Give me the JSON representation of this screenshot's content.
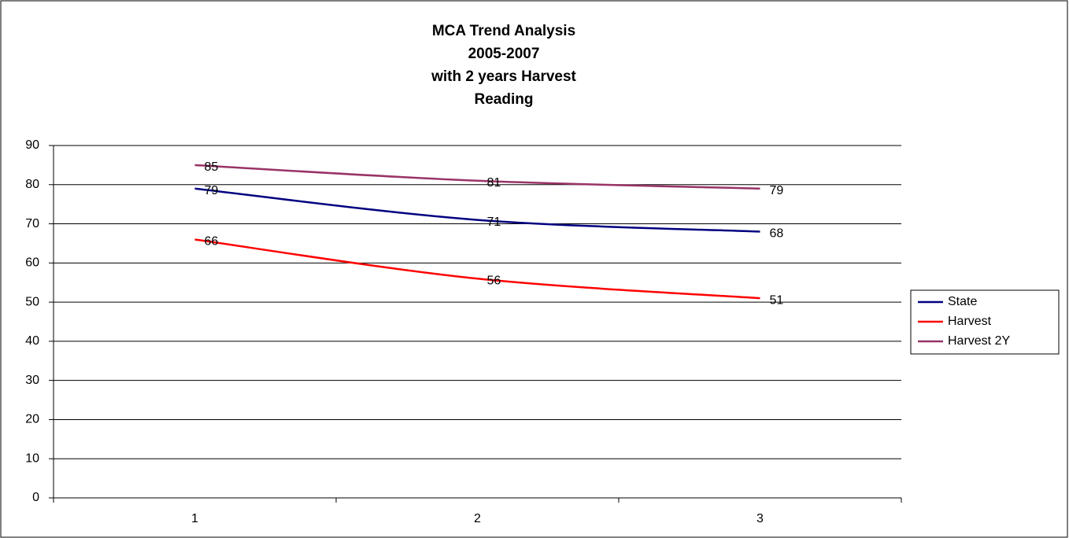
{
  "chart_data": {
    "type": "line",
    "title": [
      "MCA Trend Analysis",
      "2005-2007",
      "with 2 years Harvest",
      "Reading"
    ],
    "categories": [
      "1",
      "2",
      "3"
    ],
    "series": [
      {
        "name": "State",
        "color": "#000080",
        "values": [
          79,
          71,
          68
        ]
      },
      {
        "name": "Harvest",
        "color": "#ff0000",
        "values": [
          66,
          56,
          51
        ]
      },
      {
        "name": "Harvest 2Y",
        "color": "#993366",
        "values": [
          85,
          81,
          79
        ]
      }
    ],
    "ylim": [
      0,
      90
    ],
    "yticks": [
      0,
      10,
      20,
      30,
      40,
      50,
      60,
      70,
      80,
      90
    ],
    "grid": true,
    "legend": "right",
    "smooth": true
  }
}
